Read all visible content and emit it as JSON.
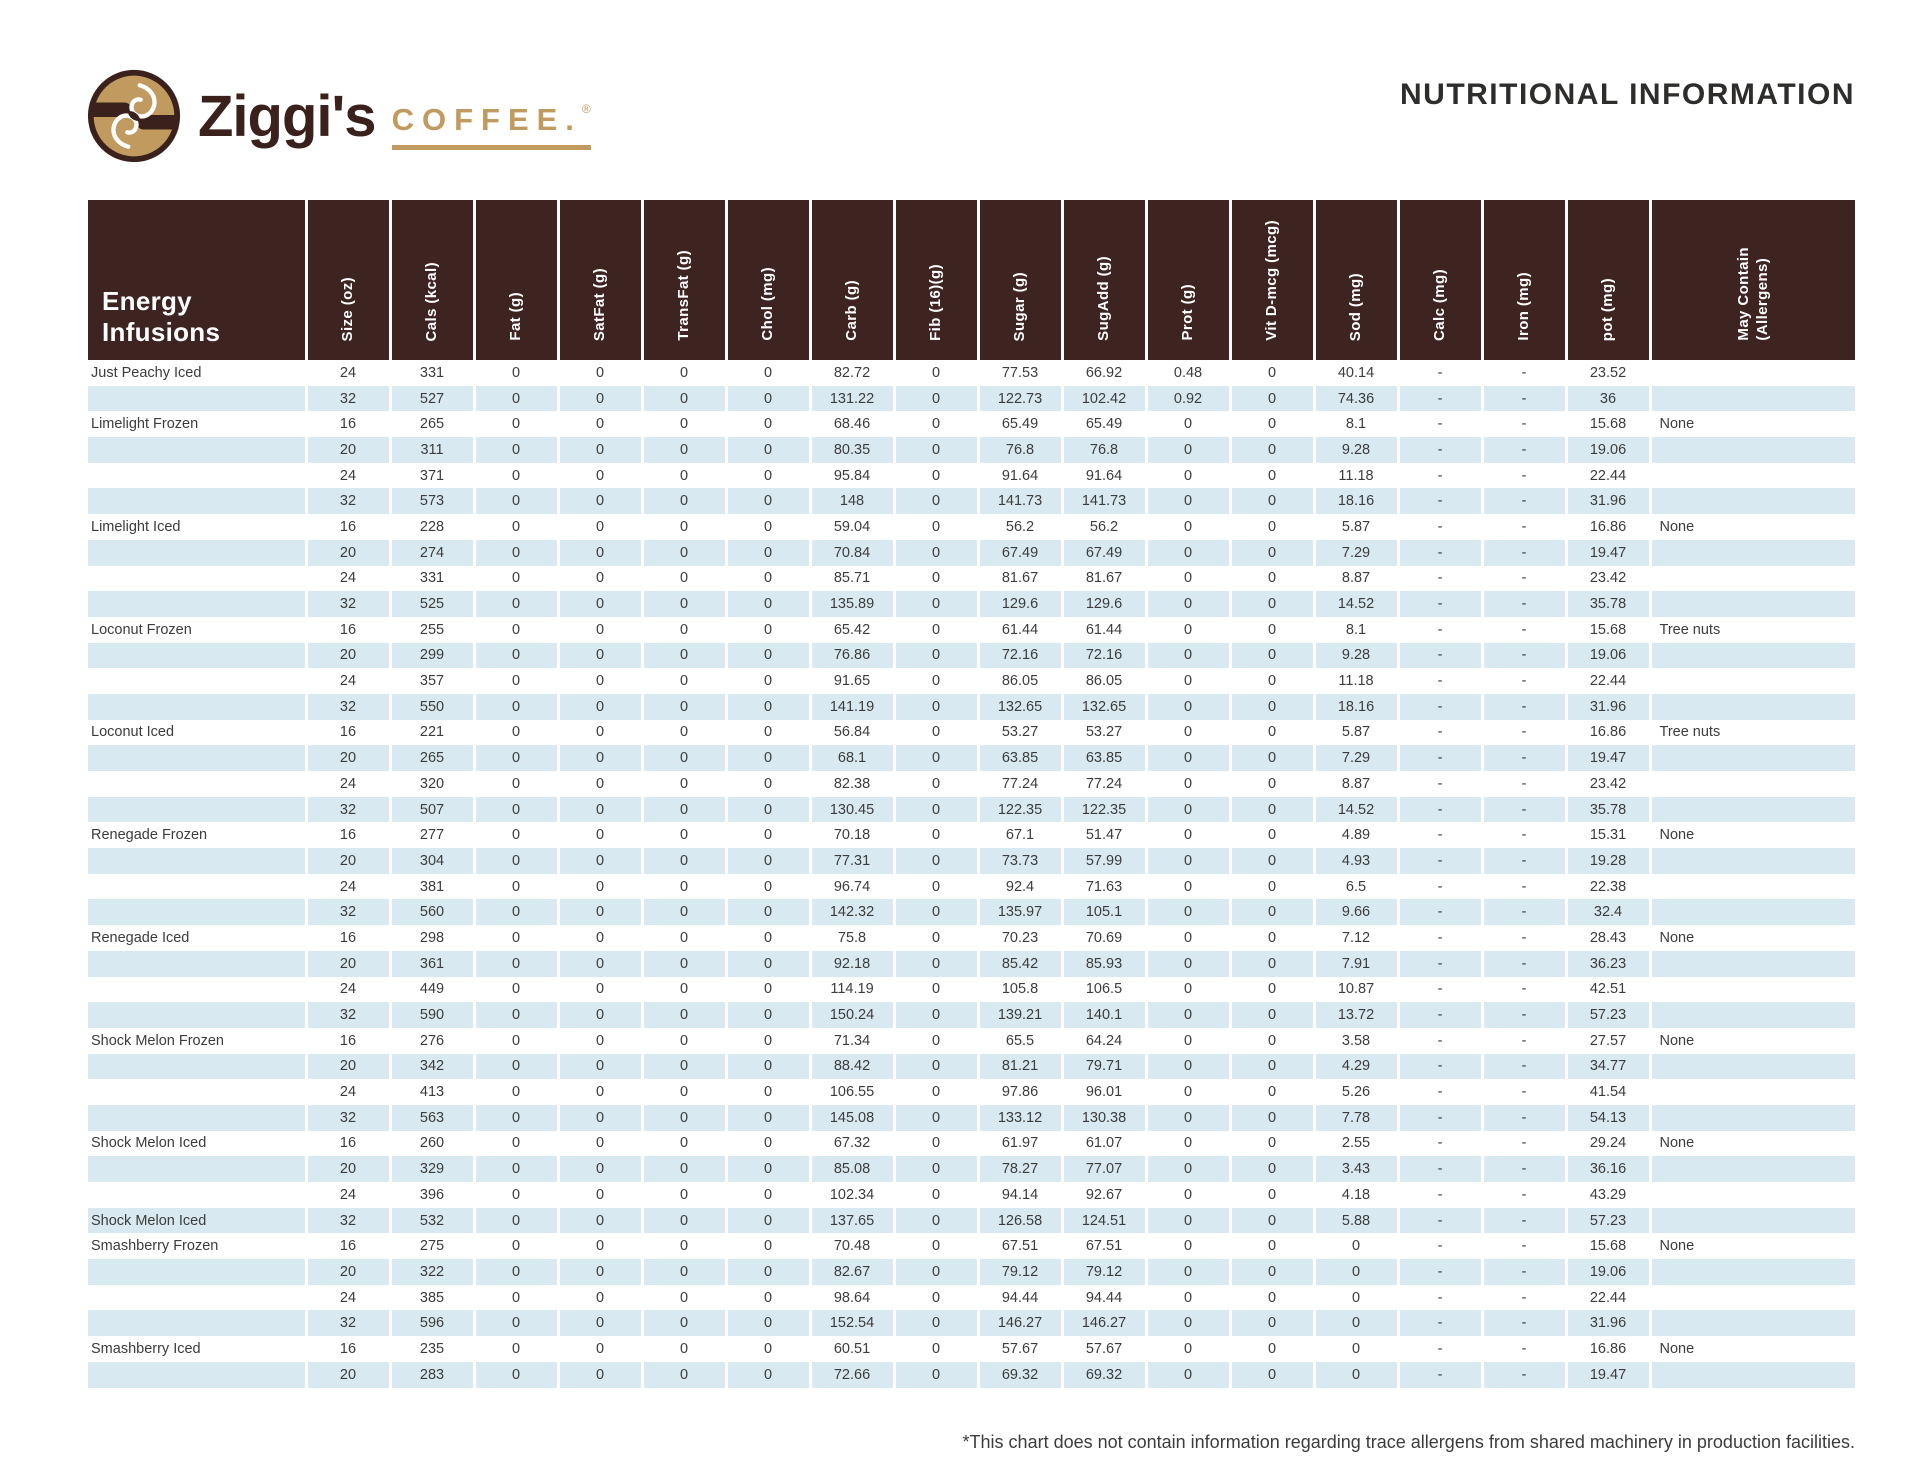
{
  "colors": {
    "header_bg": "#3d2421",
    "row_alt": "#d8e9f1",
    "gold": "#c09a5e",
    "brand_brown": "#3a211c",
    "title_text": "#2e2d2b",
    "body_text": "#3c3c3c"
  },
  "logo": {
    "name": "Ziggi's",
    "word": "COFFEE.",
    "registered": "®"
  },
  "page_title": "NUTRITIONAL INFORMATION",
  "footnote": "*This chart does not contain information regarding trace allergens from shared machinery in production facilities.",
  "table": {
    "first_column_header": "Energy Infusions",
    "columns": [
      "Size (oz)",
      "Cals (kcal)",
      "Fat (g)",
      "SatFat (g)",
      "TransFat (g)",
      "Chol (mg)",
      "Carb (g)",
      "Fib (16)(g)",
      "Sugar (g)",
      "SugAdd (g)",
      "Prot (g)",
      "Vit D-mcg (mcg)",
      "Sod (mg)",
      "Calc (mg)",
      "Iron (mg)",
      "pot (mg)",
      "May Contain\n(Allergens)"
    ],
    "rows": [
      {
        "name": "Just Peachy Iced",
        "values": [
          "24",
          "331",
          "0",
          "0",
          "0",
          "0",
          "82.72",
          "0",
          "77.53",
          "66.92",
          "0.48",
          "0",
          "40.14",
          "-",
          "-",
          "23.52",
          ""
        ]
      },
      {
        "name": "",
        "values": [
          "32",
          "527",
          "0",
          "0",
          "0",
          "0",
          "131.22",
          "0",
          "122.73",
          "102.42",
          "0.92",
          "0",
          "74.36",
          "-",
          "-",
          "36",
          ""
        ]
      },
      {
        "name": "Limelight Frozen",
        "values": [
          "16",
          "265",
          "0",
          "0",
          "0",
          "0",
          "68.46",
          "0",
          "65.49",
          "65.49",
          "0",
          "0",
          "8.1",
          "-",
          "-",
          "15.68",
          "None"
        ]
      },
      {
        "name": "",
        "values": [
          "20",
          "311",
          "0",
          "0",
          "0",
          "0",
          "80.35",
          "0",
          "76.8",
          "76.8",
          "0",
          "0",
          "9.28",
          "-",
          "-",
          "19.06",
          ""
        ]
      },
      {
        "name": "",
        "values": [
          "24",
          "371",
          "0",
          "0",
          "0",
          "0",
          "95.84",
          "0",
          "91.64",
          "91.64",
          "0",
          "0",
          "11.18",
          "-",
          "-",
          "22.44",
          ""
        ]
      },
      {
        "name": "",
        "values": [
          "32",
          "573",
          "0",
          "0",
          "0",
          "0",
          "148",
          "0",
          "141.73",
          "141.73",
          "0",
          "0",
          "18.16",
          "-",
          "-",
          "31.96",
          ""
        ]
      },
      {
        "name": "Limelight Iced",
        "values": [
          "16",
          "228",
          "0",
          "0",
          "0",
          "0",
          "59.04",
          "0",
          "56.2",
          "56.2",
          "0",
          "0",
          "5.87",
          "-",
          "-",
          "16.86",
          "None"
        ]
      },
      {
        "name": "",
        "values": [
          "20",
          "274",
          "0",
          "0",
          "0",
          "0",
          "70.84",
          "0",
          "67.49",
          "67.49",
          "0",
          "0",
          "7.29",
          "-",
          "-",
          "19.47",
          ""
        ]
      },
      {
        "name": "",
        "values": [
          "24",
          "331",
          "0",
          "0",
          "0",
          "0",
          "85.71",
          "0",
          "81.67",
          "81.67",
          "0",
          "0",
          "8.87",
          "-",
          "-",
          "23.42",
          ""
        ]
      },
      {
        "name": "",
        "values": [
          "32",
          "525",
          "0",
          "0",
          "0",
          "0",
          "135.89",
          "0",
          "129.6",
          "129.6",
          "0",
          "0",
          "14.52",
          "-",
          "-",
          "35.78",
          ""
        ]
      },
      {
        "name": "Loconut Frozen",
        "values": [
          "16",
          "255",
          "0",
          "0",
          "0",
          "0",
          "65.42",
          "0",
          "61.44",
          "61.44",
          "0",
          "0",
          "8.1",
          "-",
          "-",
          "15.68",
          "Tree nuts"
        ]
      },
      {
        "name": "",
        "values": [
          "20",
          "299",
          "0",
          "0",
          "0",
          "0",
          "76.86",
          "0",
          "72.16",
          "72.16",
          "0",
          "0",
          "9.28",
          "-",
          "-",
          "19.06",
          ""
        ]
      },
      {
        "name": "",
        "values": [
          "24",
          "357",
          "0",
          "0",
          "0",
          "0",
          "91.65",
          "0",
          "86.05",
          "86.05",
          "0",
          "0",
          "11.18",
          "-",
          "-",
          "22.44",
          ""
        ]
      },
      {
        "name": "",
        "values": [
          "32",
          "550",
          "0",
          "0",
          "0",
          "0",
          "141.19",
          "0",
          "132.65",
          "132.65",
          "0",
          "0",
          "18.16",
          "-",
          "-",
          "31.96",
          ""
        ]
      },
      {
        "name": "Loconut Iced",
        "values": [
          "16",
          "221",
          "0",
          "0",
          "0",
          "0",
          "56.84",
          "0",
          "53.27",
          "53.27",
          "0",
          "0",
          "5.87",
          "-",
          "-",
          "16.86",
          "Tree nuts"
        ]
      },
      {
        "name": "",
        "values": [
          "20",
          "265",
          "0",
          "0",
          "0",
          "0",
          "68.1",
          "0",
          "63.85",
          "63.85",
          "0",
          "0",
          "7.29",
          "-",
          "-",
          "19.47",
          ""
        ]
      },
      {
        "name": "",
        "values": [
          "24",
          "320",
          "0",
          "0",
          "0",
          "0",
          "82.38",
          "0",
          "77.24",
          "77.24",
          "0",
          "0",
          "8.87",
          "-",
          "-",
          "23.42",
          ""
        ]
      },
      {
        "name": "",
        "values": [
          "32",
          "507",
          "0",
          "0",
          "0",
          "0",
          "130.45",
          "0",
          "122.35",
          "122.35",
          "0",
          "0",
          "14.52",
          "-",
          "-",
          "35.78",
          ""
        ]
      },
      {
        "name": "Renegade Frozen",
        "values": [
          "16",
          "277",
          "0",
          "0",
          "0",
          "0",
          "70.18",
          "0",
          "67.1",
          "51.47",
          "0",
          "0",
          "4.89",
          "-",
          "-",
          "15.31",
          "None"
        ]
      },
      {
        "name": "",
        "values": [
          "20",
          "304",
          "0",
          "0",
          "0",
          "0",
          "77.31",
          "0",
          "73.73",
          "57.99",
          "0",
          "0",
          "4.93",
          "-",
          "-",
          "19.28",
          ""
        ]
      },
      {
        "name": "",
        "values": [
          "24",
          "381",
          "0",
          "0",
          "0",
          "0",
          "96.74",
          "0",
          "92.4",
          "71.63",
          "0",
          "0",
          "6.5",
          "-",
          "-",
          "22.38",
          ""
        ]
      },
      {
        "name": "",
        "values": [
          "32",
          "560",
          "0",
          "0",
          "0",
          "0",
          "142.32",
          "0",
          "135.97",
          "105.1",
          "0",
          "0",
          "9.66",
          "-",
          "-",
          "32.4",
          ""
        ]
      },
      {
        "name": "Renegade Iced",
        "values": [
          "16",
          "298",
          "0",
          "0",
          "0",
          "0",
          "75.8",
          "0",
          "70.23",
          "70.69",
          "0",
          "0",
          "7.12",
          "-",
          "-",
          "28.43",
          "None"
        ]
      },
      {
        "name": "",
        "values": [
          "20",
          "361",
          "0",
          "0",
          "0",
          "0",
          "92.18",
          "0",
          "85.42",
          "85.93",
          "0",
          "0",
          "7.91",
          "-",
          "-",
          "36.23",
          ""
        ]
      },
      {
        "name": "",
        "values": [
          "24",
          "449",
          "0",
          "0",
          "0",
          "0",
          "114.19",
          "0",
          "105.8",
          "106.5",
          "0",
          "0",
          "10.87",
          "-",
          "-",
          "42.51",
          ""
        ]
      },
      {
        "name": "",
        "values": [
          "32",
          "590",
          "0",
          "0",
          "0",
          "0",
          "150.24",
          "0",
          "139.21",
          "140.1",
          "0",
          "0",
          "13.72",
          "-",
          "-",
          "57.23",
          ""
        ]
      },
      {
        "name": "Shock Melon Frozen",
        "values": [
          "16",
          "276",
          "0",
          "0",
          "0",
          "0",
          "71.34",
          "0",
          "65.5",
          "64.24",
          "0",
          "0",
          "3.58",
          "-",
          "-",
          "27.57",
          "None"
        ]
      },
      {
        "name": "",
        "values": [
          "20",
          "342",
          "0",
          "0",
          "0",
          "0",
          "88.42",
          "0",
          "81.21",
          "79.71",
          "0",
          "0",
          "4.29",
          "-",
          "-",
          "34.77",
          ""
        ]
      },
      {
        "name": "",
        "values": [
          "24",
          "413",
          "0",
          "0",
          "0",
          "0",
          "106.55",
          "0",
          "97.86",
          "96.01",
          "0",
          "0",
          "5.26",
          "-",
          "-",
          "41.54",
          ""
        ]
      },
      {
        "name": "",
        "values": [
          "32",
          "563",
          "0",
          "0",
          "0",
          "0",
          "145.08",
          "0",
          "133.12",
          "130.38",
          "0",
          "0",
          "7.78",
          "-",
          "-",
          "54.13",
          ""
        ]
      },
      {
        "name": "Shock Melon Iced",
        "values": [
          "16",
          "260",
          "0",
          "0",
          "0",
          "0",
          "67.32",
          "0",
          "61.97",
          "61.07",
          "0",
          "0",
          "2.55",
          "-",
          "-",
          "29.24",
          "None"
        ]
      },
      {
        "name": "",
        "values": [
          "20",
          "329",
          "0",
          "0",
          "0",
          "0",
          "85.08",
          "0",
          "78.27",
          "77.07",
          "0",
          "0",
          "3.43",
          "-",
          "-",
          "36.16",
          ""
        ]
      },
      {
        "name": "",
        "values": [
          "24",
          "396",
          "0",
          "0",
          "0",
          "0",
          "102.34",
          "0",
          "94.14",
          "92.67",
          "0",
          "0",
          "4.18",
          "-",
          "-",
          "43.29",
          ""
        ]
      },
      {
        "name": "Shock Melon Iced",
        "values": [
          "32",
          "532",
          "0",
          "0",
          "0",
          "0",
          "137.65",
          "0",
          "126.58",
          "124.51",
          "0",
          "0",
          "5.88",
          "-",
          "-",
          "57.23",
          ""
        ]
      },
      {
        "name": "Smashberry Frozen",
        "values": [
          "16",
          "275",
          "0",
          "0",
          "0",
          "0",
          "70.48",
          "0",
          "67.51",
          "67.51",
          "0",
          "0",
          "0",
          "-",
          "-",
          "15.68",
          "None"
        ]
      },
      {
        "name": "",
        "values": [
          "20",
          "322",
          "0",
          "0",
          "0",
          "0",
          "82.67",
          "0",
          "79.12",
          "79.12",
          "0",
          "0",
          "0",
          "-",
          "-",
          "19.06",
          ""
        ]
      },
      {
        "name": "",
        "values": [
          "24",
          "385",
          "0",
          "0",
          "0",
          "0",
          "98.64",
          "0",
          "94.44",
          "94.44",
          "0",
          "0",
          "0",
          "-",
          "-",
          "22.44",
          ""
        ]
      },
      {
        "name": "",
        "values": [
          "32",
          "596",
          "0",
          "0",
          "0",
          "0",
          "152.54",
          "0",
          "146.27",
          "146.27",
          "0",
          "0",
          "0",
          "-",
          "-",
          "31.96",
          ""
        ]
      },
      {
        "name": "Smashberry Iced",
        "values": [
          "16",
          "235",
          "0",
          "0",
          "0",
          "0",
          "60.51",
          "0",
          "57.67",
          "57.67",
          "0",
          "0",
          "0",
          "-",
          "-",
          "16.86",
          "None"
        ]
      },
      {
        "name": "",
        "values": [
          "20",
          "283",
          "0",
          "0",
          "0",
          "0",
          "72.66",
          "0",
          "69.32",
          "69.32",
          "0",
          "0",
          "0",
          "-",
          "-",
          "19.47",
          ""
        ]
      }
    ]
  }
}
